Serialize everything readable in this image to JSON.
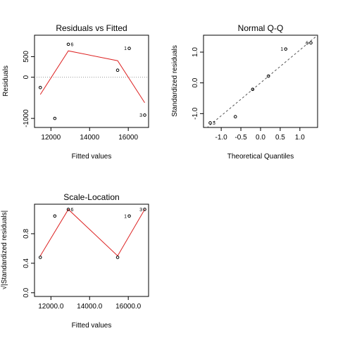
{
  "colors": {
    "smoother": "#dd2222",
    "points": "#000000",
    "reference": "#999999"
  },
  "chart_data": [
    {
      "type": "scatter",
      "title": "Residuals vs Fitted",
      "xlabel": "Fitted values",
      "ylabel": "Residuals",
      "xlim": [
        11150,
        17050
      ],
      "ylim": [
        -1220,
        1020
      ],
      "xticks": [
        12000,
        14000,
        16000
      ],
      "yticks": [
        -1000,
        0,
        500
      ],
      "grid": false,
      "reference_line": {
        "type": "horizontal",
        "y": 0,
        "style": "dotted"
      },
      "points": [
        {
          "x": 11450,
          "y": -250,
          "label": ""
        },
        {
          "x": 12200,
          "y": -1000,
          "label": ""
        },
        {
          "x": 12900,
          "y": 800,
          "label": "6"
        },
        {
          "x": 15450,
          "y": 170,
          "label": ""
        },
        {
          "x": 16050,
          "y": 700,
          "label": "1"
        },
        {
          "x": 16850,
          "y": -920,
          "label": "3"
        }
      ],
      "smoother": {
        "x": [
          11450,
          12900,
          15450,
          16850
        ],
        "y": [
          -420,
          640,
          400,
          -620
        ]
      }
    },
    {
      "type": "scatter",
      "title": "Normal Q-Q",
      "xlabel": "Theoretical Quantiles",
      "ylabel": "Standardized residuals",
      "xlim": [
        -1.45,
        1.45
      ],
      "ylim": [
        -1.45,
        1.55
      ],
      "xticks": [
        -1.0,
        -0.5,
        0.0,
        0.5,
        1.0
      ],
      "yticks": [
        -1.0,
        0.0,
        1.0
      ],
      "grid": false,
      "reference_line": {
        "type": "diagonal",
        "x": [
          -1.45,
          1.45
        ],
        "y": [
          -1.55,
          1.55
        ],
        "style": "dashed"
      },
      "points": [
        {
          "x": -1.28,
          "y": -1.3,
          "label": "3"
        },
        {
          "x": -0.64,
          "y": -1.1,
          "label": ""
        },
        {
          "x": -0.2,
          "y": -0.21,
          "label": ""
        },
        {
          "x": 0.2,
          "y": 0.22,
          "label": ""
        },
        {
          "x": 0.64,
          "y": 1.1,
          "label": "1"
        },
        {
          "x": 1.28,
          "y": 1.3,
          "label": "6"
        }
      ]
    },
    {
      "type": "scatter",
      "title": "Scale-Location",
      "xlabel": "Fitted values",
      "ylabel": "√|Standardized residuals|",
      "xlim": [
        11150,
        17050
      ],
      "ylim": [
        -0.05,
        1.2
      ],
      "xticks": [
        12000,
        14000,
        16000
      ],
      "yticks": [
        0.0,
        0.4,
        0.8
      ],
      "grid": false,
      "points": [
        {
          "x": 11450,
          "y": 0.48,
          "label": ""
        },
        {
          "x": 12200,
          "y": 1.04,
          "label": ""
        },
        {
          "x": 12900,
          "y": 1.13,
          "label": "6"
        },
        {
          "x": 15450,
          "y": 0.48,
          "label": ""
        },
        {
          "x": 16050,
          "y": 1.04,
          "label": "1"
        },
        {
          "x": 16850,
          "y": 1.13,
          "label": "3"
        }
      ],
      "smoother": {
        "x": [
          11450,
          12900,
          15450,
          16850
        ],
        "y": [
          0.5,
          1.13,
          0.5,
          1.13
        ]
      }
    }
  ]
}
